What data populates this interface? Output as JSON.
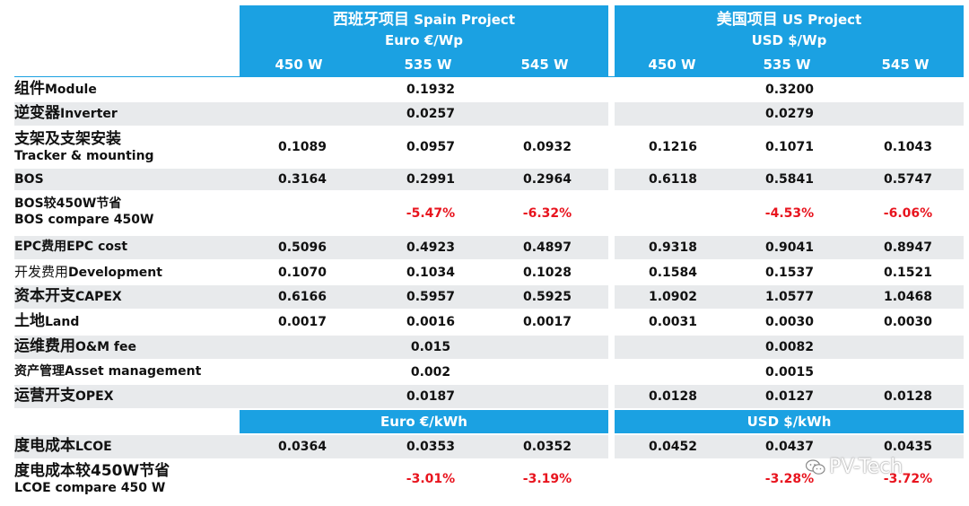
{
  "spain": {
    "title_zh": "西班牙项目",
    "title_en": "Spain Project",
    "unit": "Euro €/Wp",
    "unit_kwh": "Euro €/kWh"
  },
  "us": {
    "title_zh": "美国项目",
    "title_en": "US Project",
    "unit": "USD $/Wp",
    "unit_kwh": "USD $/kWh"
  },
  "power_columns": [
    "450 W",
    "535 W",
    "545 W",
    "450 W",
    "535 W",
    "545 W"
  ],
  "rows": [
    {
      "zh": "组件",
      "en": "Module",
      "values": [
        "",
        "0.1932",
        "",
        "",
        "0.3200",
        ""
      ]
    },
    {
      "zh": "逆变器",
      "en": "Inverter",
      "values": [
        "",
        "0.0257",
        "",
        "",
        "0.0279",
        ""
      ]
    },
    {
      "zh": "支架及支架安装",
      "en": "Tracker & mounting",
      "values": [
        "0.1089",
        "0.0957",
        "0.0932",
        "0.1216",
        "0.1071",
        "0.1043"
      ]
    },
    {
      "zh": "",
      "en": "BOS",
      "values": [
        "0.3164",
        "0.2991",
        "0.2964",
        "0.6118",
        "0.5841",
        "0.5747"
      ]
    },
    {
      "zh": "BOS较450W节省",
      "en": "BOS compare 450W",
      "values": [
        "",
        "-5.47%",
        "-6.32%",
        "",
        "-4.53%",
        "-6.06%"
      ]
    },
    {
      "zh": "EPC费用",
      "en": "EPC cost",
      "values": [
        "0.5096",
        "0.4923",
        "0.4897",
        "0.9318",
        "0.9041",
        "0.8947"
      ]
    },
    {
      "zh": "开发费用",
      "en": "Development",
      "values": [
        "0.1070",
        "0.1034",
        "0.1028",
        "0.1584",
        "0.1537",
        "0.1521"
      ]
    },
    {
      "zh": "资本开支",
      "en": "CAPEX",
      "values": [
        "0.6166",
        "0.5957",
        "0.5925",
        "1.0902",
        "1.0577",
        "1.0468"
      ]
    },
    {
      "zh": "土地",
      "en": "Land",
      "values": [
        "0.0017",
        "0.0016",
        "0.0017",
        "0.0031",
        "0.0030",
        "0.0030"
      ]
    },
    {
      "zh": "运维费用",
      "en": "O&M fee",
      "values": [
        "",
        "0.015",
        "",
        "",
        "0.0082",
        ""
      ]
    },
    {
      "zh": "资产管理",
      "en": "Asset management",
      "values": [
        "",
        "0.002",
        "",
        "",
        "0.0015",
        ""
      ]
    },
    {
      "zh": "运营开支",
      "en": "OPEX",
      "values": [
        "",
        "0.0187",
        "",
        "0.0128",
        "0.0127",
        "0.0128"
      ]
    },
    {
      "zh": "度电成本",
      "en": "LCOE",
      "values": [
        "0.0364",
        "0.0353",
        "0.0352",
        "0.0452",
        "0.0437",
        "0.0435"
      ]
    },
    {
      "zh": "度电成本较450W节省",
      "en": "LCOE compare 450 W",
      "values": [
        "",
        "-3.01%",
        "-3.19%",
        "",
        "-3.28%",
        "-3.72%"
      ]
    }
  ],
  "watermark": "PV-Tech",
  "colors": {
    "header_blue": "#1ba1e2",
    "negative_red": "#e8141e",
    "shaded_row": "#e8eaec"
  }
}
